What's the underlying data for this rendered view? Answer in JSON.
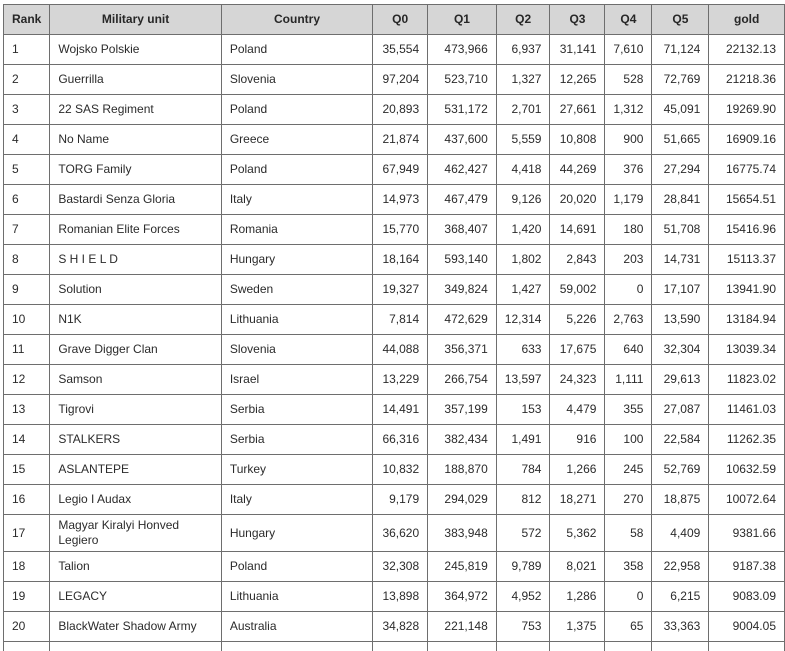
{
  "table": {
    "name": "military-unit-ranking",
    "columns": [
      {
        "key": "rank",
        "label": "Rank"
      },
      {
        "key": "unit",
        "label": "Military unit"
      },
      {
        "key": "country",
        "label": "Country"
      },
      {
        "key": "q0",
        "label": "Q0"
      },
      {
        "key": "q1",
        "label": "Q1"
      },
      {
        "key": "q2",
        "label": "Q2"
      },
      {
        "key": "q3",
        "label": "Q3"
      },
      {
        "key": "q4",
        "label": "Q4"
      },
      {
        "key": "q5",
        "label": "Q5"
      },
      {
        "key": "gold",
        "label": "gold"
      }
    ],
    "rows": [
      {
        "rank": "1",
        "unit": "Wojsko Polskie",
        "country": "Poland",
        "q0": "35,554",
        "q1": "473,966",
        "q2": "6,937",
        "q3": "31,141",
        "q4": "7,610",
        "q5": "71,124",
        "gold": "22132.13"
      },
      {
        "rank": "2",
        "unit": "Guerrilla",
        "country": "Slovenia",
        "q0": "97,204",
        "q1": "523,710",
        "q2": "1,327",
        "q3": "12,265",
        "q4": "528",
        "q5": "72,769",
        "gold": "21218.36"
      },
      {
        "rank": "3",
        "unit": "22 SAS Regiment",
        "country": "Poland",
        "q0": "20,893",
        "q1": "531,172",
        "q2": "2,701",
        "q3": "27,661",
        "q4": "1,312",
        "q5": "45,091",
        "gold": "19269.90"
      },
      {
        "rank": "4",
        "unit": "No Name",
        "country": "Greece",
        "q0": "21,874",
        "q1": "437,600",
        "q2": "5,559",
        "q3": "10,808",
        "q4": "900",
        "q5": "51,665",
        "gold": "16909.16"
      },
      {
        "rank": "5",
        "unit": "TORG Family",
        "country": "Poland",
        "q0": "67,949",
        "q1": "462,427",
        "q2": "4,418",
        "q3": "44,269",
        "q4": "376",
        "q5": "27,294",
        "gold": "16775.74"
      },
      {
        "rank": "6",
        "unit": "Bastardi Senza Gloria",
        "country": "Italy",
        "q0": "14,973",
        "q1": "467,479",
        "q2": "9,126",
        "q3": "20,020",
        "q4": "1,179",
        "q5": "28,841",
        "gold": "15654.51"
      },
      {
        "rank": "7",
        "unit": "Romanian Elite Forces",
        "country": "Romania",
        "q0": "15,770",
        "q1": "368,407",
        "q2": "1,420",
        "q3": "14,691",
        "q4": "180",
        "q5": "51,708",
        "gold": "15416.96"
      },
      {
        "rank": "8",
        "unit": "S H I E L D",
        "country": "Hungary",
        "q0": "18,164",
        "q1": "593,140",
        "q2": "1,802",
        "q3": "2,843",
        "q4": "203",
        "q5": "14,731",
        "gold": "15113.37"
      },
      {
        "rank": "9",
        "unit": "Solution",
        "country": "Sweden",
        "q0": "19,327",
        "q1": "349,824",
        "q2": "1,427",
        "q3": "59,002",
        "q4": "0",
        "q5": "17,107",
        "gold": "13941.90"
      },
      {
        "rank": "10",
        "unit": "N1K",
        "country": "Lithuania",
        "q0": "7,814",
        "q1": "472,629",
        "q2": "12,314",
        "q3": "5,226",
        "q4": "2,763",
        "q5": "13,590",
        "gold": "13184.94"
      },
      {
        "rank": "11",
        "unit": "Grave Digger Clan",
        "country": "Slovenia",
        "q0": "44,088",
        "q1": "356,371",
        "q2": "633",
        "q3": "17,675",
        "q4": "640",
        "q5": "32,304",
        "gold": "13039.34"
      },
      {
        "rank": "12",
        "unit": "Samson",
        "country": "Israel",
        "q0": "13,229",
        "q1": "266,754",
        "q2": "13,597",
        "q3": "24,323",
        "q4": "1,111",
        "q5": "29,613",
        "gold": "11823.02"
      },
      {
        "rank": "13",
        "unit": "Tigrovi",
        "country": "Serbia",
        "q0": "14,491",
        "q1": "357,199",
        "q2": "153",
        "q3": "4,479",
        "q4": "355",
        "q5": "27,087",
        "gold": "11461.03"
      },
      {
        "rank": "14",
        "unit": "STALKERS",
        "country": "Serbia",
        "q0": "66,316",
        "q1": "382,434",
        "q2": "1,491",
        "q3": "916",
        "q4": "100",
        "q5": "22,584",
        "gold": "11262.35"
      },
      {
        "rank": "15",
        "unit": "ASLANTEPE",
        "country": "Turkey",
        "q0": "10,832",
        "q1": "188,870",
        "q2": "784",
        "q3": "1,266",
        "q4": "245",
        "q5": "52,769",
        "gold": "10632.59"
      },
      {
        "rank": "16",
        "unit": "Legio I Audax",
        "country": "Italy",
        "q0": "9,179",
        "q1": "294,029",
        "q2": "812",
        "q3": "18,271",
        "q4": "270",
        "q5": "18,875",
        "gold": "10072.64"
      },
      {
        "rank": "17",
        "unit": "Magyar Kiralyi Honved Legiero",
        "country": "Hungary",
        "q0": "36,620",
        "q1": "383,948",
        "q2": "572",
        "q3": "5,362",
        "q4": "58",
        "q5": "4,409",
        "gold": "9381.66"
      },
      {
        "rank": "18",
        "unit": "Talion",
        "country": "Poland",
        "q0": "32,308",
        "q1": "245,819",
        "q2": "9,789",
        "q3": "8,021",
        "q4": "358",
        "q5": "22,958",
        "gold": "9187.38"
      },
      {
        "rank": "19",
        "unit": "LEGACY",
        "country": "Lithuania",
        "q0": "13,898",
        "q1": "364,972",
        "q2": "4,952",
        "q3": "1,286",
        "q4": "0",
        "q5": "6,215",
        "gold": "9083.09"
      },
      {
        "rank": "20",
        "unit": "BlackWater Shadow Army",
        "country": "Australia",
        "q0": "34,828",
        "q1": "221,148",
        "q2": "753",
        "q3": "1,375",
        "q4": "65",
        "q5": "33,363",
        "gold": "9004.05"
      }
    ]
  },
  "colors": {
    "header_background": "#d6d6d6",
    "cell_border": "#6e6e6e",
    "text": "#2b2b2b",
    "row_background": "#ffffff"
  }
}
